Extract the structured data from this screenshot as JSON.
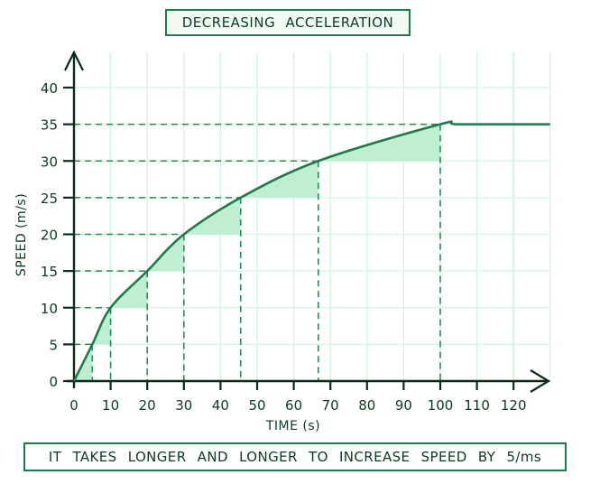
{
  "title": "DECREASING ACCELERATION",
  "caption": "IT TAKES LONGER AND LONGER TO INCREASE SPEED BY 5/ms",
  "colors": {
    "curve": "#1e7a4a",
    "shading": "#bfeed3",
    "dashed": "#2a8a55",
    "grid": "#d4f3e2",
    "axis": "#0d2a1a",
    "text": "#0e3a22"
  },
  "chart_data": {
    "type": "line",
    "title": "DECREASING ACCELERATION",
    "xlabel": "TIME (s)",
    "ylabel": "SPEED (m/s)",
    "xlim": [
      0,
      130
    ],
    "ylim": [
      0,
      40
    ],
    "xticks": [
      0,
      10,
      20,
      30,
      40,
      50,
      60,
      70,
      80,
      90,
      100,
      110,
      120
    ],
    "yticks": [
      0,
      5,
      10,
      15,
      20,
      25,
      30,
      35,
      40
    ],
    "grid": true,
    "series": [
      {
        "name": "speed",
        "x": [
          0,
          5,
          10,
          20,
          30,
          45.5,
          66.7,
          100,
          105,
          130
        ],
        "y": [
          0,
          5,
          10,
          15,
          20,
          25,
          30,
          35,
          35,
          35
        ]
      }
    ],
    "step_markers": [
      {
        "time": 5,
        "speed": 5
      },
      {
        "time": 10,
        "speed": 10
      },
      {
        "time": 20,
        "speed": 15
      },
      {
        "time": 30,
        "speed": 20
      },
      {
        "time": 45.5,
        "speed": 25
      },
      {
        "time": 66.7,
        "speed": 30
      },
      {
        "time": 100,
        "speed": 35
      }
    ],
    "annotation": "IT TAKES LONGER AND LONGER TO INCREASE SPEED BY 5/ms",
    "legend": null
  }
}
